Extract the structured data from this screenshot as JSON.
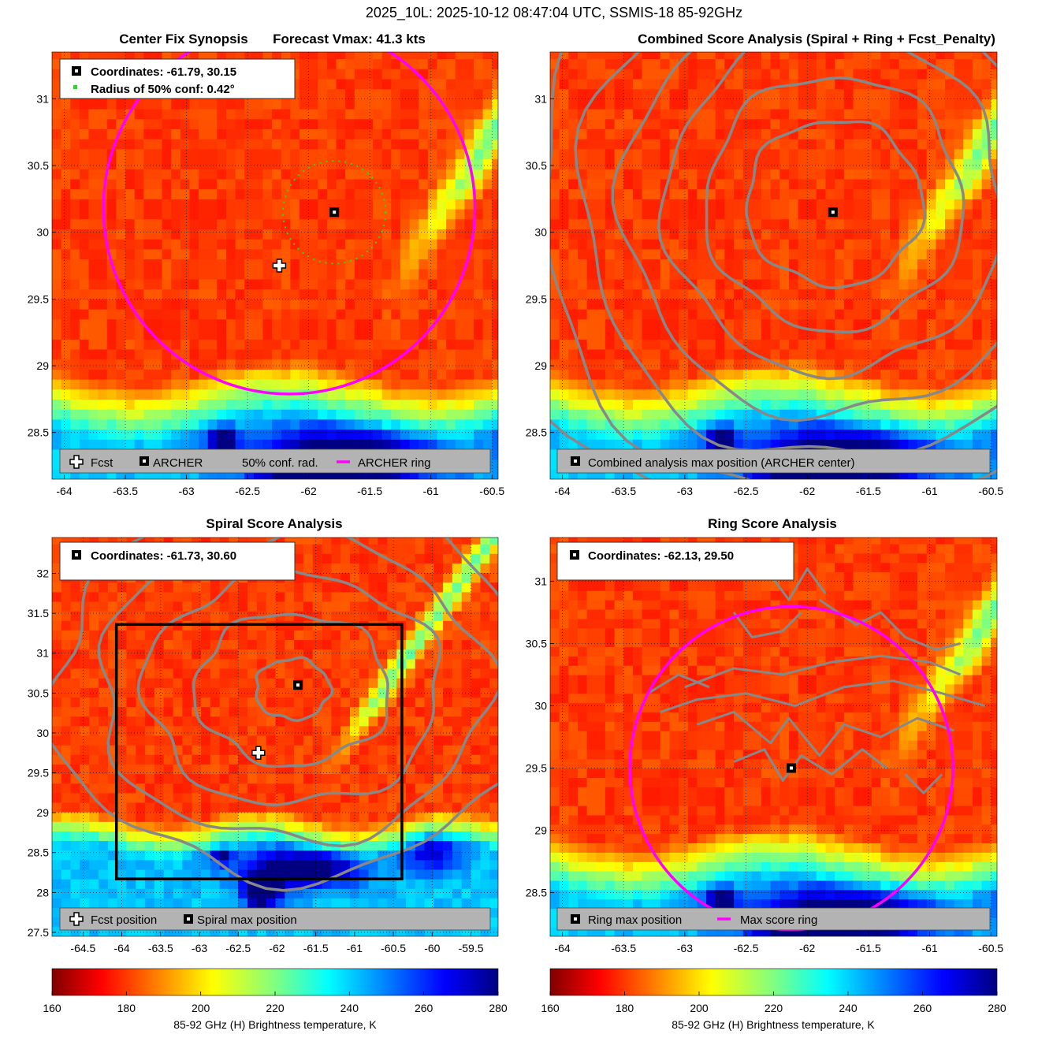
{
  "figure": {
    "suptitle": "2025_10L: 2025-10-12 08:47:04 UTC, SSMIS-18 85-92GHz"
  },
  "colors": {
    "ring": "#ff00ff",
    "conf": "#22dd22",
    "contour": "#888888",
    "box": "#000000",
    "legend_bg": "#b3b3b3"
  },
  "panels": {
    "p1": {
      "title_left": "Center Fix Synopsis",
      "title_right": "Forecast Vmax: 41.3 kts",
      "info": [
        "Coordinates: -61.79, 30.15",
        "Radius of 50% conf: 0.42°"
      ],
      "legend": [
        "Fcst",
        "ARCHER",
        "50% conf. rad.",
        "ARCHER ring"
      ],
      "xlim": [
        -64.1,
        -60.45
      ],
      "ylim": [
        28.15,
        31.35
      ],
      "xticks": [
        "-64",
        "-63.5",
        "-63",
        "-62.5",
        "-62",
        "-61.5",
        "-61",
        "-60.5"
      ],
      "yticks": [
        "28.5",
        "29",
        "29.5",
        "30",
        "30.5",
        "31"
      ]
    },
    "p2": {
      "title": "Combined Score Analysis (Spiral + Ring + Fcst_Penalty)",
      "legend": [
        "Combined analysis max position (ARCHER center)"
      ],
      "xlim": [
        -64.1,
        -60.45
      ],
      "ylim": [
        28.15,
        31.35
      ],
      "xticks": [
        "-64",
        "-63.5",
        "-63",
        "-62.5",
        "-62",
        "-61.5",
        "-61",
        "-60.5"
      ],
      "yticks": [
        "28.5",
        "29",
        "29.5",
        "30",
        "30.5",
        "31"
      ]
    },
    "p3": {
      "title": "Spiral Score Analysis",
      "info": [
        "Coordinates: -61.73, 30.60"
      ],
      "legend": [
        "Fcst position",
        "Spiral max position"
      ],
      "xlim": [
        -64.9,
        -59.15
      ],
      "ylim": [
        27.45,
        32.45
      ],
      "xticks": [
        "-64.5",
        "-64",
        "-63.5",
        "-63",
        "-62.5",
        "-62",
        "-61.5",
        "-61",
        "-60.5",
        "-60",
        "-59.5"
      ],
      "yticks": [
        "27.5",
        "28",
        "28.5",
        "29",
        "29.5",
        "30",
        "30.5",
        "31",
        "31.5",
        "32"
      ]
    },
    "p4": {
      "title": "Ring Score Analysis",
      "info": [
        "Coordinates: -62.13, 29.50"
      ],
      "legend": [
        "Ring max position",
        "Max score ring"
      ],
      "xlim": [
        -64.1,
        -60.45
      ],
      "ylim": [
        28.15,
        31.35
      ],
      "xticks": [
        "-64",
        "-63.5",
        "-63",
        "-62.5",
        "-62",
        "-61.5",
        "-61",
        "-60.5"
      ],
      "yticks": [
        "28.5",
        "29",
        "29.5",
        "30",
        "30.5",
        "31"
      ]
    }
  },
  "colorbars": [
    {
      "label": "85-92 GHz (H) Brightness temperature, K",
      "ticks": [
        "160",
        "180",
        "200",
        "220",
        "240",
        "260",
        "280"
      ]
    },
    {
      "label": "85-92 GHz (H) Brightness temperature, K",
      "ticks": [
        "160",
        "180",
        "200",
        "220",
        "240",
        "260",
        "280"
      ]
    }
  ],
  "chart_data": [
    {
      "type": "heatmap",
      "title": "Center Fix Synopsis",
      "subtitle": "Forecast Vmax: 41.3 kts",
      "colorbar_range": [
        160,
        280
      ],
      "colorbar_label": "85-92 GHz (H) Brightness temperature, K",
      "markers": [
        {
          "name": "Fcst",
          "lon": -62.24,
          "lat": 29.75
        },
        {
          "name": "ARCHER",
          "lon": -61.79,
          "lat": 30.15
        }
      ],
      "circles": [
        {
          "name": "50% conf. rad.",
          "lon": -61.79,
          "lat": 30.15,
          "radius_deg": 0.42
        },
        {
          "name": "ARCHER ring",
          "lon": -62.16,
          "lat": 30.18,
          "radius_deg": 1.52
        }
      ]
    },
    {
      "type": "heatmap",
      "title": "Combined Score Analysis (Spiral + Ring + Fcst_Penalty)",
      "colorbar_range": [
        160,
        280
      ],
      "markers": [
        {
          "name": "Combined analysis max position (ARCHER center)",
          "lon": -61.79,
          "lat": 30.15
        }
      ]
    },
    {
      "type": "heatmap",
      "title": "Spiral Score Analysis",
      "colorbar_range": [
        160,
        280
      ],
      "markers": [
        {
          "name": "Fcst position",
          "lon": -62.24,
          "lat": 29.75
        },
        {
          "name": "Spiral max position",
          "lon": -61.73,
          "lat": 30.6
        }
      ],
      "search_box": {
        "lon": [
          -64.07,
          -60.39
        ],
        "lat": [
          28.17,
          31.36
        ]
      }
    },
    {
      "type": "heatmap",
      "title": "Ring Score Analysis",
      "colorbar_range": [
        160,
        280
      ],
      "markers": [
        {
          "name": "Ring max position",
          "lon": -62.13,
          "lat": 29.5
        }
      ],
      "circles": [
        {
          "name": "Max score ring",
          "lon": -62.13,
          "lat": 29.5,
          "radius_deg": 1.32
        }
      ]
    }
  ]
}
